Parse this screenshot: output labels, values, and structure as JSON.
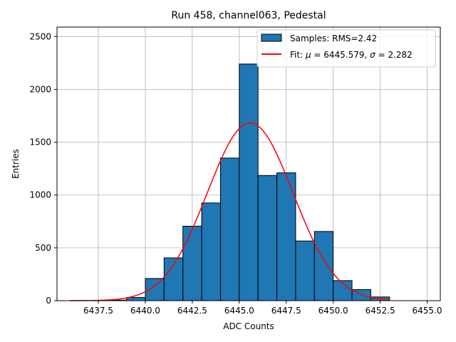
{
  "chart_data": {
    "type": "bar",
    "title": "Run 458, channel063, Pedestal",
    "xlabel": "ADC Counts",
    "ylabel": "Entries",
    "xlim": [
      6435.3,
      6455.7
    ],
    "ylim": [
      0,
      2590
    ],
    "xticks": [
      6437.5,
      6440.0,
      6442.5,
      6445.0,
      6447.5,
      6450.0,
      6452.5,
      6455.0
    ],
    "xtick_labels": [
      "6437.5",
      "6440.0",
      "6442.5",
      "6445.0",
      "6447.5",
      "6450.0",
      "6452.5",
      "6455.0"
    ],
    "yticks": [
      0,
      500,
      1000,
      1500,
      2000,
      2500
    ],
    "ytick_labels": [
      "0",
      "500",
      "1000",
      "1500",
      "2000",
      "2500"
    ],
    "grid": true,
    "legend_position": "top-right",
    "bar_color": "#1f77b4",
    "fit_color": "#ff0000",
    "histogram": {
      "name": "Samples: RMS=2.42",
      "bin_edges": [
        6436.0,
        6437.0,
        6438.0,
        6439.0,
        6440.0,
        6441.0,
        6442.0,
        6443.0,
        6444.0,
        6445.0,
        6446.0,
        6447.0,
        6448.0,
        6449.0,
        6450.0,
        6451.0,
        6452.0,
        6453.0
      ],
      "counts": [
        1,
        0,
        5,
        30,
        210,
        405,
        705,
        925,
        1350,
        2240,
        1185,
        1210,
        565,
        655,
        190,
        105,
        35
      ]
    },
    "fit": {
      "name": "Fit: μ = 6445.579, σ = 2.282",
      "name_prefix": "Fit: ",
      "mu_symbol": "μ",
      "mu_text": " = 6445.579, ",
      "sigma_symbol": "σ",
      "sigma_text": " = 2.282",
      "mu": 6445.579,
      "sigma": 2.282,
      "amplitude": 1683,
      "x_range": [
        6436.0,
        6453.0
      ]
    }
  }
}
